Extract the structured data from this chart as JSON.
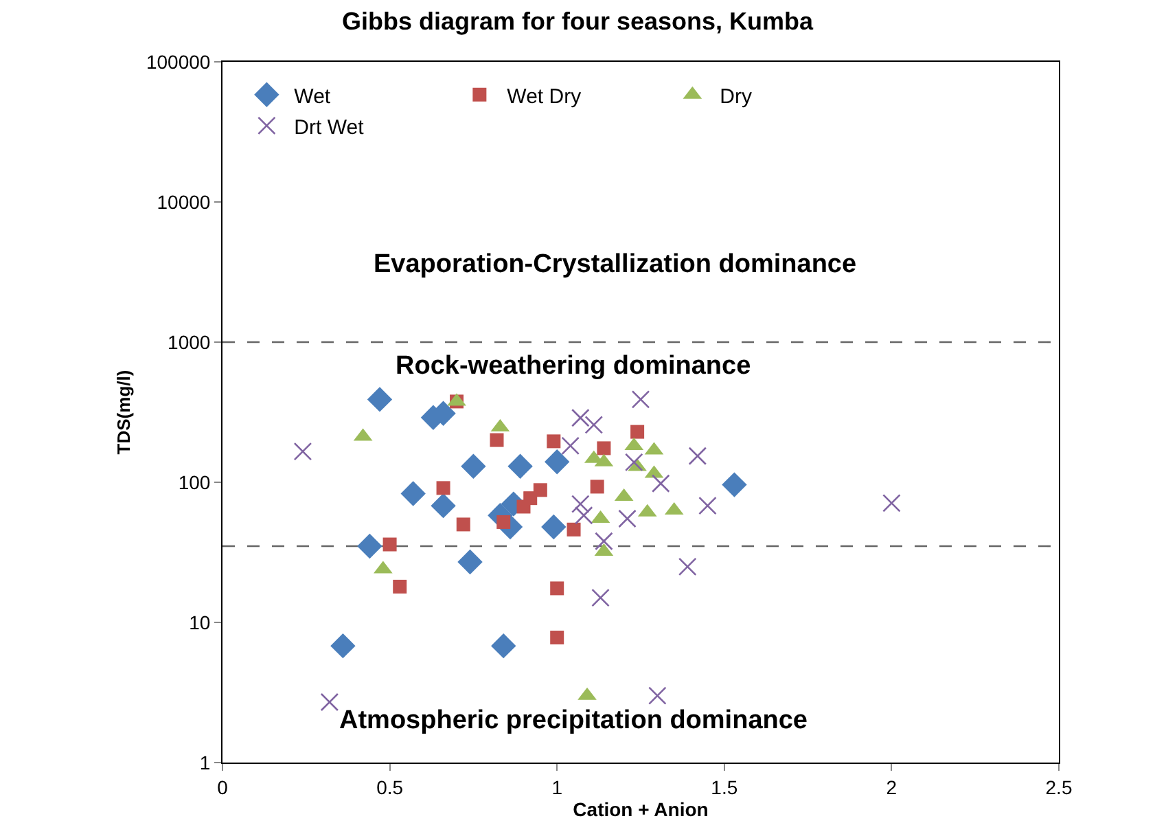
{
  "chart_data": {
    "type": "scatter",
    "title": "Gibbs diagram for four seasons, Kumba",
    "xlabel": "Cation + Anion",
    "ylabel": "TDS(mg/l)",
    "xlim": [
      0,
      2.5
    ],
    "xticks": [
      0,
      0.5,
      1,
      1.5,
      2,
      2.5
    ],
    "ylim": [
      1,
      100000
    ],
    "yticks": [
      1,
      10,
      100,
      1000,
      10000,
      100000
    ],
    "log": "y",
    "grid": false,
    "legend": "top",
    "series": [
      {
        "name": "Wet",
        "color": "#4a7ebb",
        "marker": "diamond",
        "x": [
          0.47,
          0.63,
          0.66,
          0.75,
          0.89,
          1.0,
          0.57,
          0.66,
          0.87,
          0.83,
          0.86,
          0.99,
          0.44,
          0.74,
          0.36,
          0.84,
          1.53
        ],
        "values": [
          390,
          290,
          310,
          130,
          130,
          140,
          83,
          68,
          70,
          58,
          48,
          48,
          35,
          27,
          6.8,
          6.8,
          96
        ]
      },
      {
        "name": "Wet Dry",
        "color": "#c0504d",
        "marker": "square",
        "x": [
          0.7,
          0.82,
          0.99,
          1.14,
          1.24,
          0.66,
          0.95,
          0.92,
          0.9,
          1.12,
          0.72,
          0.84,
          1.05,
          0.5,
          0.53,
          1.0,
          1.0
        ],
        "values": [
          377,
          200,
          196,
          175,
          229,
          91,
          88,
          77,
          67,
          93,
          50,
          52,
          46,
          36,
          18,
          17.5,
          7.8
        ]
      },
      {
        "name": "Dry",
        "color": "#9bbb59",
        "marker": "triangle",
        "x": [
          0.7,
          0.83,
          0.42,
          0.48,
          1.11,
          1.14,
          1.23,
          1.29,
          1.24,
          1.29,
          1.2,
          1.13,
          1.27,
          1.35,
          1.14,
          1.09
        ],
        "values": [
          377,
          247,
          212,
          24,
          147,
          139,
          182,
          169,
          129,
          115,
          79,
          55,
          61,
          63,
          32,
          3.0
        ]
      },
      {
        "name": "Drt Wet",
        "color": "#8064a2",
        "marker": "cross",
        "x": [
          0.24,
          0.32,
          1.25,
          1.07,
          1.11,
          1.04,
          1.23,
          1.31,
          1.42,
          1.45,
          1.07,
          1.08,
          1.21,
          1.14,
          1.39,
          1.13,
          1.3,
          2.0
        ],
        "values": [
          166,
          2.7,
          390,
          288,
          257,
          182,
          139,
          98,
          154,
          68,
          70,
          58,
          55,
          38,
          25,
          15,
          3.0,
          71
        ]
      }
    ],
    "ref_lines": [
      {
        "axis": "y",
        "value": 1000,
        "color": "#666666",
        "line_style": "dashed"
      },
      {
        "axis": "y",
        "value": 35,
        "color": "#666666",
        "line_style": "dashed"
      }
    ],
    "annotations": [
      "Evaporation-Crystallization dominance",
      "Rock-weathering dominance",
      "Atmospheric precipitation dominance"
    ]
  }
}
